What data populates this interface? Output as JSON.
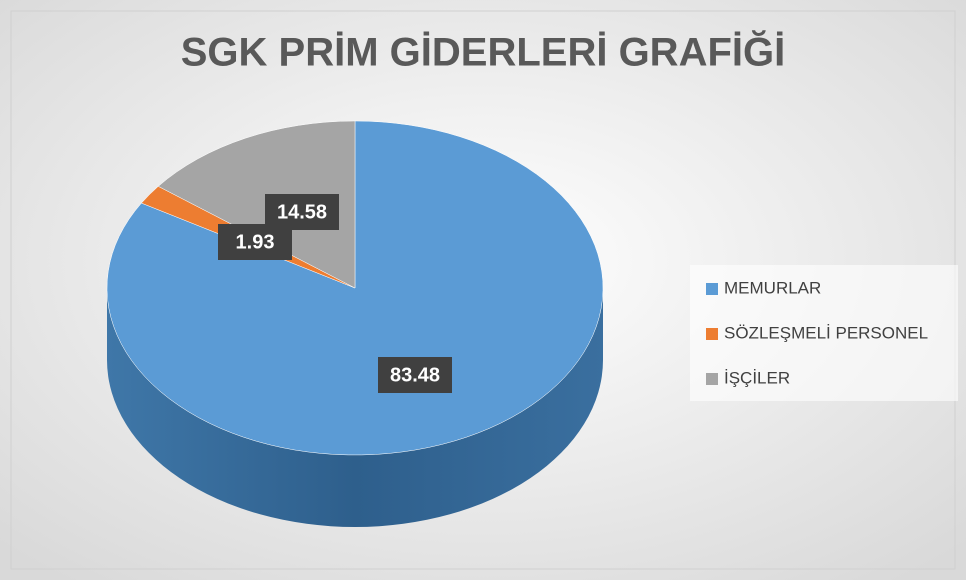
{
  "chart_data": {
    "type": "pie",
    "title": "SGK PRİM GİDERLERİ GRAFİĞİ",
    "categories": [
      "MEMURLAR",
      "SÖZLEŞMELİ PERSONEL",
      "İŞÇİLER"
    ],
    "values": [
      83.48,
      1.93,
      14.58
    ],
    "colors": [
      "#5b9bd5",
      "#ed7d31",
      "#a5a5a5"
    ],
    "legend": "right"
  }
}
